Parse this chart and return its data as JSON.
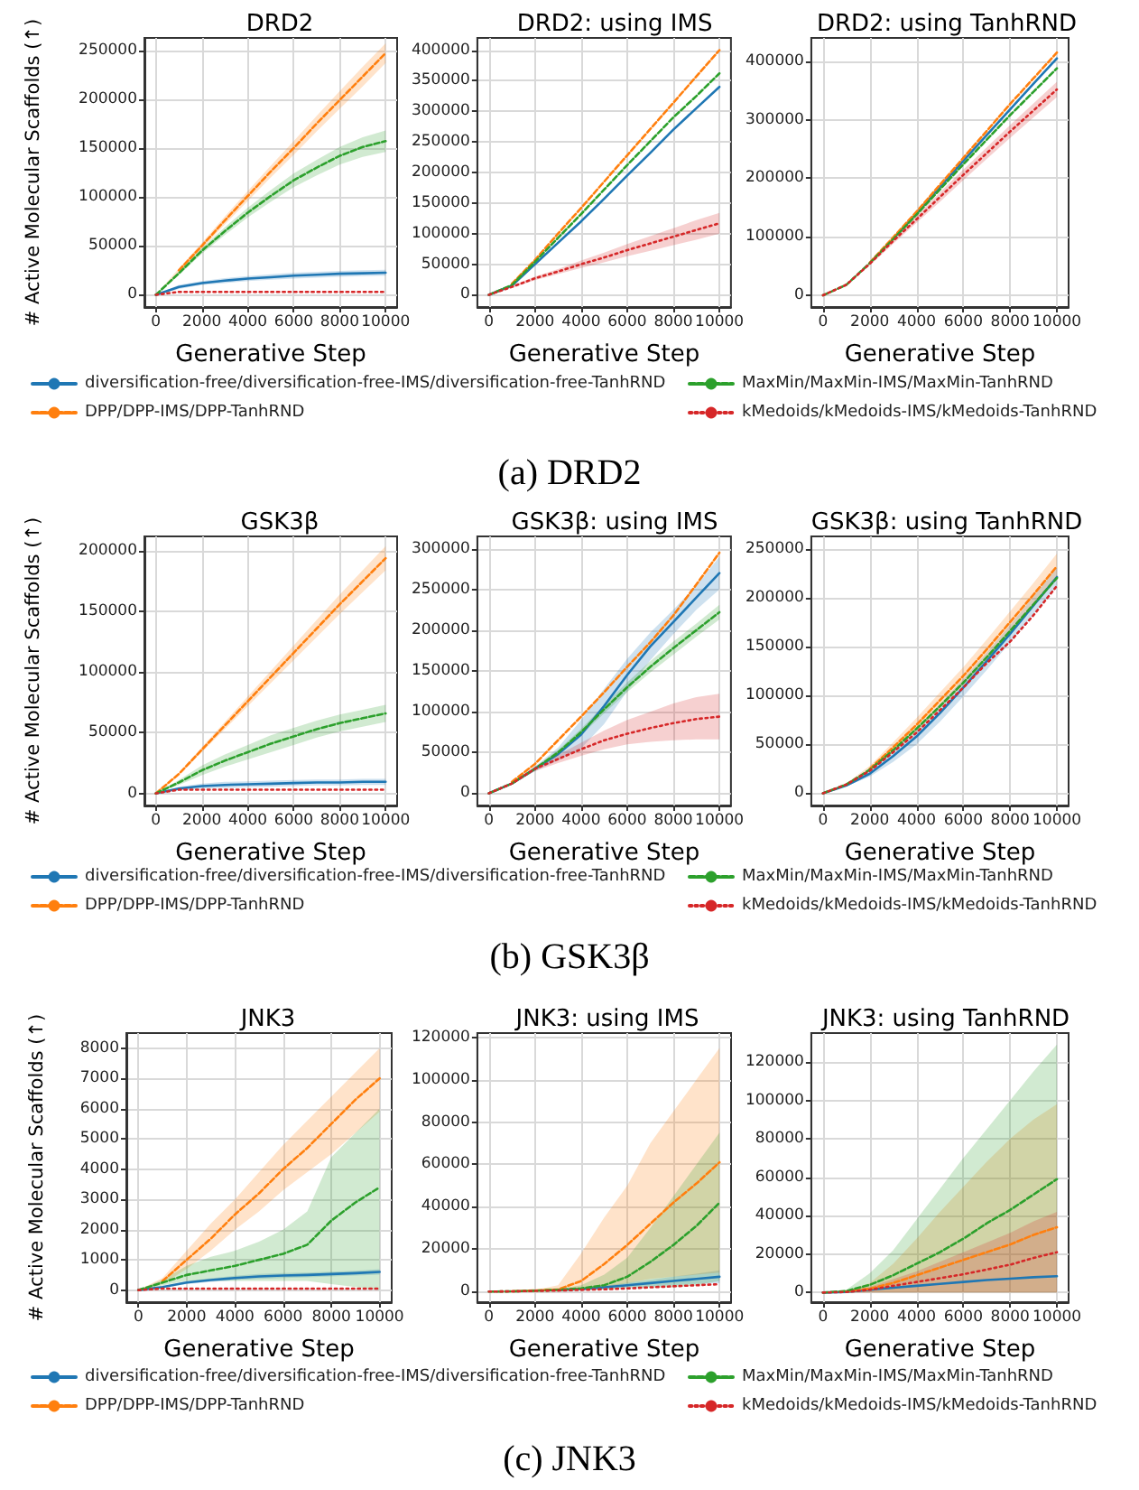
{
  "chart_data": [
    {
      "type": "line",
      "title": "DRD2",
      "xlabel": "Generative Step",
      "ylabel": "# Active Molecular Scaffolds (↑)",
      "annotations": [
        "(a) DRD2"
      ],
      "legend": "bottom",
      "grid": true,
      "marker": "none",
      "x": [
        0,
        1000,
        2000,
        3000,
        4000,
        5000,
        6000,
        7000,
        8000,
        9000,
        10000
      ],
      "xlim": [
        -500,
        10500
      ],
      "xticks": [
        0,
        2000,
        4000,
        6000,
        8000,
        10000
      ],
      "ylim": [
        -12500,
        262500
      ],
      "yticks": [
        0,
        50000,
        100000,
        150000,
        200000,
        250000
      ],
      "series": [
        {
          "name": "diversification-free/diversification-free-IMS/diversification-free-TanhRND",
          "color": "#1f77b4",
          "line_style": "solid",
          "values": [
            0,
            8000,
            12000,
            14500,
            16500,
            18000,
            19500,
            20500,
            21500,
            22000,
            22500
          ],
          "lower": [
            0,
            6000,
            10000,
            12000,
            14000,
            15500,
            16500,
            17500,
            18500,
            19000,
            19500
          ],
          "upper": [
            0,
            10000,
            14000,
            17000,
            19000,
            21000,
            22500,
            23500,
            24500,
            25000,
            25500
          ]
        },
        {
          "name": "DPP/DPP-IMS/DPP-TanhRND",
          "color": "#ff7f0e",
          "line_style": "dashed",
          "values": [
            null,
            25000,
            50000,
            76000,
            101000,
            126000,
            150000,
            175000,
            199000,
            223000,
            247000
          ],
          "lower": [
            0,
            23000,
            47000,
            72000,
            96000,
            120000,
            143000,
            167000,
            190000,
            213000,
            237000
          ],
          "upper": [
            0,
            27000,
            53000,
            80000,
            106000,
            132000,
            157000,
            183000,
            208000,
            233000,
            257000
          ]
        },
        {
          "name": "MaxMin/MaxMin-IMS/MaxMin-TanhRND",
          "color": "#2ca02c",
          "line_style": "dashed",
          "values": [
            0,
            22000,
            45000,
            65000,
            84000,
            101000,
            117000,
            130000,
            142000,
            151000,
            157000
          ],
          "lower": [
            0,
            20000,
            42000,
            61000,
            79000,
            95000,
            110000,
            122000,
            133000,
            141000,
            146000
          ],
          "upper": [
            0,
            24000,
            48000,
            69000,
            89000,
            107000,
            124000,
            138000,
            151000,
            161000,
            168000
          ]
        },
        {
          "name": "kMedoids/kMedoids-IMS/kMedoids-TanhRND",
          "color": "#d62728",
          "line_style": "dotted",
          "values": [
            0,
            3000,
            3000,
            3000,
            3000,
            3000,
            3000,
            3000,
            3000,
            3000,
            3000
          ]
        }
      ]
    },
    {
      "type": "line",
      "title": "DRD2: using IMS",
      "xlabel": "Generative Step",
      "grid": true,
      "marker": "none",
      "x": [
        0,
        1000,
        2000,
        3000,
        4000,
        5000,
        6000,
        7000,
        8000,
        9000,
        10000
      ],
      "xlim": [
        -500,
        10500
      ],
      "xticks": [
        0,
        2000,
        4000,
        6000,
        8000,
        10000
      ],
      "ylim": [
        -20000,
        420000
      ],
      "yticks": [
        0,
        50000,
        100000,
        150000,
        200000,
        250000,
        300000,
        350000,
        400000
      ],
      "series": [
        {
          "color": "#1f77b4",
          "line_style": "solid",
          "values": [
            0,
            15000,
            50000,
            85000,
            120000,
            157000,
            195000,
            232000,
            270000,
            305000,
            340000
          ]
        },
        {
          "color": "#ff7f0e",
          "line_style": "dashed",
          "values": [
            null,
            18000,
            57000,
            100000,
            142000,
            185000,
            228000,
            271000,
            314000,
            357000,
            400000
          ]
        },
        {
          "color": "#2ca02c",
          "line_style": "dashed",
          "values": [
            0,
            16000,
            54000,
            93000,
            132000,
            172000,
            212000,
            251000,
            290000,
            325000,
            362000
          ]
        },
        {
          "color": "#d62728",
          "line_style": "dotted",
          "values": [
            0,
            13000,
            27000,
            38000,
            50000,
            61000,
            73000,
            84000,
            95000,
            106000,
            117000
          ],
          "lower": [
            0,
            11000,
            24000,
            34000,
            44000,
            53000,
            63000,
            72000,
            81000,
            90000,
            100000
          ],
          "upper": [
            0,
            15000,
            30000,
            42000,
            56000,
            69000,
            83000,
            96000,
            109000,
            122000,
            134000
          ]
        }
      ]
    },
    {
      "type": "line",
      "title": "DRD2: using TanhRND",
      "xlabel": "Generative Step",
      "grid": true,
      "marker": "none",
      "x": [
        0,
        1000,
        2000,
        3000,
        4000,
        5000,
        6000,
        7000,
        8000,
        9000,
        10000
      ],
      "xlim": [
        -500,
        10500
      ],
      "xticks": [
        0,
        2000,
        4000,
        6000,
        8000,
        10000
      ],
      "ylim": [
        -20000,
        440000
      ],
      "yticks": [
        0,
        100000,
        200000,
        300000,
        400000
      ],
      "series": [
        {
          "color": "#1f77b4",
          "line_style": "solid",
          "values": [
            null,
            null,
            null,
            97000,
            140000,
            185000,
            230000,
            274000,
            318000,
            362000,
            405000
          ]
        },
        {
          "color": "#ff7f0e",
          "line_style": "dashed",
          "values": [
            null,
            null,
            56000,
            99000,
            143000,
            189000,
            235000,
            281000,
            327000,
            371000,
            415000
          ]
        },
        {
          "color": "#2ca02c",
          "line_style": "dashed",
          "values": [
            0,
            18000,
            55000,
            96000,
            138000,
            181000,
            224000,
            266000,
            308000,
            348000,
            388000
          ]
        },
        {
          "color": "#d62728",
          "line_style": "dotted",
          "values": [
            0,
            18000,
            54000,
            93000,
            130000,
            168000,
            206000,
            243000,
            280000,
            316000,
            352000
          ],
          "lower": [
            0,
            17000,
            51000,
            88000,
            124000,
            160000,
            197000,
            233000,
            269000,
            304000,
            339000
          ],
          "upper": [
            0,
            19000,
            57000,
            98000,
            136000,
            176000,
            215000,
            253000,
            291000,
            328000,
            365000
          ]
        }
      ]
    },
    {
      "type": "line",
      "title": "GSK3β",
      "xlabel": "Generative Step",
      "ylabel": "# Active Molecular Scaffolds (↑)",
      "annotations": [
        "(b) GSK3β"
      ],
      "legend": "bottom",
      "grid": true,
      "marker": "none",
      "x": [
        0,
        1000,
        2000,
        3000,
        4000,
        5000,
        6000,
        7000,
        8000,
        9000,
        10000
      ],
      "xlim": [
        -500,
        10500
      ],
      "xticks": [
        0,
        2000,
        4000,
        6000,
        8000,
        10000
      ],
      "ylim": [
        -10000,
        212000
      ],
      "yticks": [
        0,
        50000,
        100000,
        150000,
        200000
      ],
      "series": [
        {
          "name": "diversification-free/diversification-free-IMS/diversification-free-TanhRND",
          "color": "#1f77b4",
          "line_style": "solid",
          "values": [
            0,
            4000,
            6000,
            7000,
            7500,
            8000,
            8500,
            9000,
            9000,
            9500,
            9500
          ],
          "lower": [
            0,
            2500,
            4000,
            4500,
            5000,
            5500,
            6000,
            6500,
            6500,
            7000,
            7000
          ],
          "upper": [
            0,
            5500,
            8000,
            9500,
            10000,
            10500,
            11000,
            11500,
            11500,
            12000,
            12000
          ]
        },
        {
          "name": "DPP/DPP-IMS/DPP-TanhRND",
          "color": "#ff7f0e",
          "line_style": "dashed",
          "values": [
            0,
            16000,
            36000,
            56000,
            76000,
            96000,
            116000,
            136000,
            156000,
            175000,
            194000
          ],
          "lower": [
            0,
            15000,
            34000,
            53000,
            72000,
            91000,
            110000,
            129000,
            148000,
            166000,
            184000
          ],
          "upper": [
            0,
            17000,
            38000,
            59000,
            80000,
            101000,
            122000,
            143000,
            164000,
            184000,
            204000
          ]
        },
        {
          "name": "MaxMin/MaxMin-IMS/MaxMin-TanhRND",
          "color": "#2ca02c",
          "line_style": "dashed",
          "values": [
            0,
            9000,
            19000,
            27000,
            34000,
            41000,
            47000,
            53000,
            58000,
            62000,
            66000
          ],
          "lower": [
            0,
            7000,
            15000,
            22000,
            28000,
            34000,
            40000,
            46000,
            51000,
            55000,
            59000
          ],
          "upper": [
            0,
            11000,
            23000,
            32000,
            40000,
            48000,
            54000,
            60000,
            65000,
            69000,
            73000
          ]
        },
        {
          "name": "kMedoids/kMedoids-IMS/kMedoids-TanhRND",
          "color": "#d62728",
          "line_style": "dotted",
          "values": [
            0,
            3000,
            3000,
            3000,
            3000,
            3000,
            3000,
            3000,
            3000,
            3000,
            3000
          ]
        }
      ]
    },
    {
      "type": "line",
      "title": "GSK3β: using IMS",
      "xlabel": "Generative Step",
      "grid": true,
      "marker": "none",
      "x": [
        0,
        1000,
        2000,
        3000,
        4000,
        5000,
        6000,
        7000,
        8000,
        9000,
        10000
      ],
      "xlim": [
        -500,
        10500
      ],
      "xticks": [
        0,
        2000,
        4000,
        6000,
        8000,
        10000
      ],
      "ylim": [
        -15000,
        315000
      ],
      "yticks": [
        0,
        50000,
        100000,
        150000,
        200000,
        250000,
        300000
      ],
      "series": [
        {
          "color": "#1f77b4",
          "line_style": "solid",
          "values": [
            0,
            12000,
            30000,
            48000,
            72000,
            107000,
            145000,
            180000,
            210000,
            240000,
            270000
          ],
          "lower": [
            0,
            11000,
            27000,
            40000,
            55000,
            85000,
            125000,
            163000,
            195000,
            225000,
            250000
          ],
          "upper": [
            0,
            13000,
            33000,
            56000,
            90000,
            128000,
            165000,
            197000,
            225000,
            255000,
            290000
          ]
        },
        {
          "color": "#ff7f0e",
          "line_style": "dashed",
          "values": [
            null,
            14000,
            36000,
            65000,
            94000,
            124000,
            155000,
            185000,
            218000,
            256000,
            295000
          ]
        },
        {
          "color": "#2ca02c",
          "line_style": "dashed",
          "values": [
            0,
            12000,
            30000,
            50000,
            75000,
            103000,
            130000,
            155000,
            178000,
            200000,
            222000
          ],
          "lower": [
            0,
            11000,
            28000,
            47000,
            71000,
            98000,
            124000,
            148000,
            170000,
            192000,
            213000
          ],
          "upper": [
            0,
            13000,
            32000,
            53000,
            79000,
            108000,
            136000,
            162000,
            186000,
            208000,
            231000
          ]
        },
        {
          "color": "#d62728",
          "line_style": "dotted",
          "values": [
            0,
            12000,
            30000,
            42000,
            54000,
            65000,
            73000,
            80000,
            86000,
            91000,
            94000
          ],
          "lower": [
            0,
            11000,
            27000,
            37000,
            46000,
            54000,
            60000,
            63000,
            65000,
            66000,
            66000
          ],
          "upper": [
            0,
            13000,
            33000,
            47000,
            62000,
            77000,
            90000,
            100000,
            110000,
            118000,
            122000
          ]
        }
      ]
    },
    {
      "type": "line",
      "title": "GSK3β: using TanhRND",
      "xlabel": "Generative Step",
      "grid": true,
      "marker": "none",
      "x": [
        0,
        1000,
        2000,
        3000,
        4000,
        5000,
        6000,
        7000,
        8000,
        9000,
        10000
      ],
      "xlim": [
        -500,
        10500
      ],
      "xticks": [
        0,
        2000,
        4000,
        6000,
        8000,
        10000
      ],
      "ylim": [
        -12500,
        262500
      ],
      "yticks": [
        0,
        50000,
        100000,
        150000,
        200000,
        250000
      ],
      "series": [
        {
          "color": "#1f77b4",
          "line_style": "solid",
          "values": [
            0,
            8000,
            20000,
            38000,
            58000,
            82000,
            108000,
            135000,
            163000,
            192000,
            221000
          ],
          "lower": [
            0,
            7000,
            17000,
            32000,
            50000,
            73000,
            99000,
            126000,
            154000,
            183000,
            211000
          ],
          "upper": [
            0,
            9000,
            23000,
            44000,
            66000,
            91000,
            117000,
            144000,
            172000,
            201000,
            231000
          ]
        },
        {
          "color": "#ff7f0e",
          "line_style": "dashed",
          "values": [
            null,
            null,
            25000,
            47000,
            70000,
            95000,
            120000,
            147000,
            175000,
            203000,
            232000
          ],
          "lower": [
            0,
            8000,
            22000,
            42000,
            63000,
            87000,
            111000,
            137000,
            164000,
            191000,
            219000
          ],
          "upper": [
            0,
            10000,
            28000,
            52000,
            77000,
            103000,
            129000,
            157000,
            186000,
            215000,
            245000
          ]
        },
        {
          "color": "#2ca02c",
          "line_style": "dashed",
          "values": [
            0,
            9000,
            24000,
            44000,
            66000,
            89000,
            113000,
            139000,
            166000,
            193000,
            220000
          ]
        },
        {
          "color": "#d62728",
          "line_style": "dotted",
          "values": [
            0,
            9000,
            23000,
            42000,
            62000,
            85000,
            108000,
            133000,
            155000,
            182000,
            212000
          ]
        }
      ]
    },
    {
      "type": "line",
      "title": "JNK3",
      "xlabel": "Generative Step",
      "ylabel": "# Active Molecular Scaffolds (↑)",
      "annotations": [
        "(c) JNK3"
      ],
      "legend": "bottom",
      "grid": true,
      "marker": "none",
      "x": [
        0,
        1000,
        2000,
        3000,
        4000,
        5000,
        6000,
        7000,
        8000,
        9000,
        10000
      ],
      "xlim": [
        -500,
        10500
      ],
      "xticks": [
        0,
        2000,
        4000,
        6000,
        8000,
        10000
      ],
      "ylim": [
        -400,
        8500
      ],
      "yticks": [
        0,
        1000,
        2000,
        3000,
        4000,
        5000,
        6000,
        7000,
        8000
      ],
      "series": [
        {
          "name": "diversification-free/diversification-free-IMS/diversification-free-TanhRND",
          "color": "#1f77b4",
          "line_style": "solid",
          "values": [
            0,
            100,
            250,
            330,
            400,
            450,
            480,
            500,
            530,
            560,
            600
          ],
          "lower": [
            0,
            80,
            200,
            270,
            330,
            370,
            400,
            420,
            450,
            480,
            510
          ],
          "upper": [
            0,
            120,
            300,
            390,
            470,
            530,
            560,
            580,
            610,
            640,
            690
          ]
        },
        {
          "name": "DPP/DPP-IMS/DPP-TanhRND",
          "color": "#ff7f0e",
          "line_style": "dashed",
          "values": [
            null,
            300,
            1000,
            1700,
            2500,
            3200,
            4000,
            4700,
            5500,
            6300,
            7000
          ],
          "lower": [
            0,
            200,
            700,
            1300,
            2000,
            2600,
            3300,
            3900,
            4500,
            5200,
            5900
          ],
          "upper": [
            0,
            400,
            1300,
            2200,
            3000,
            3900,
            4800,
            5600,
            6400,
            7200,
            8000
          ]
        },
        {
          "name": "MaxMin/MaxMin-IMS/MaxMin-TanhRND",
          "color": "#2ca02c",
          "line_style": "dashed",
          "values": [
            0,
            250,
            500,
            650,
            800,
            1000,
            1200,
            1500,
            2300,
            2900,
            3400
          ],
          "lower": [
            0,
            150,
            300,
            300,
            300,
            300,
            300,
            300,
            200,
            100,
            0
          ],
          "upper": [
            0,
            350,
            800,
            1100,
            1300,
            1600,
            2000,
            2600,
            4400,
            5200,
            6000
          ]
        },
        {
          "name": "kMedoids/kMedoids-IMS/kMedoids-TanhRND",
          "color": "#d62728",
          "line_style": "dotted",
          "values": [
            0,
            50,
            50,
            50,
            50,
            50,
            50,
            50,
            50,
            50,
            50
          ]
        }
      ]
    },
    {
      "type": "line",
      "title": "JNK3: using IMS",
      "xlabel": "Generative Step",
      "grid": true,
      "marker": "none",
      "x": [
        0,
        1000,
        2000,
        3000,
        4000,
        5000,
        6000,
        7000,
        8000,
        9000,
        10000
      ],
      "xlim": [
        -500,
        10500
      ],
      "xticks": [
        0,
        2000,
        4000,
        6000,
        8000,
        10000
      ],
      "ylim": [
        -5000,
        122000
      ],
      "yticks": [
        0,
        20000,
        40000,
        60000,
        80000,
        100000,
        120000
      ],
      "series": [
        {
          "color": "#1f77b4",
          "line_style": "solid",
          "values": [
            null,
            null,
            null,
            800,
            1200,
            2000,
            3000,
            4000,
            5000,
            6000,
            7000
          ],
          "lower": [
            0,
            100,
            300,
            500,
            800,
            1200,
            1800,
            2400,
            3000,
            3600,
            4000
          ],
          "upper": [
            0,
            300,
            700,
            1100,
            1600,
            2800,
            4200,
            5600,
            7000,
            8400,
            10000
          ]
        },
        {
          "color": "#ff7f0e",
          "line_style": "dashed",
          "values": [
            null,
            100,
            500,
            1000,
            5000,
            13000,
            22000,
            32000,
            42000,
            51000,
            61000
          ],
          "lower": [
            0,
            0,
            200,
            500,
            800,
            2000,
            4000,
            6000,
            7000,
            8000,
            9000
          ],
          "upper": [
            0,
            200,
            800,
            3000,
            18000,
            35000,
            50000,
            70000,
            85000,
            100000,
            115000
          ]
        },
        {
          "color": "#2ca02c",
          "line_style": "dashed",
          "values": [
            0,
            100,
            400,
            800,
            1500,
            3000,
            7000,
            14000,
            22000,
            31000,
            42000
          ],
          "lower": [
            0,
            0,
            200,
            400,
            600,
            1000,
            2000,
            2000,
            2000,
            3000,
            5000
          ],
          "upper": [
            0,
            200,
            600,
            1200,
            3000,
            8000,
            16000,
            30000,
            45000,
            60000,
            75000
          ]
        },
        {
          "color": "#d62728",
          "line_style": "dotted",
          "values": [
            0,
            100,
            300,
            500,
            800,
            1100,
            1500,
            2000,
            2500,
            3000,
            3500
          ]
        }
      ]
    },
    {
      "type": "line",
      "title": "JNK3: using TanhRND",
      "xlabel": "Generative Step",
      "grid": true,
      "marker": "none",
      "x": [
        0,
        1000,
        2000,
        3000,
        4000,
        5000,
        6000,
        7000,
        8000,
        9000,
        10000
      ],
      "xlim": [
        -500,
        10500
      ],
      "xticks": [
        0,
        2000,
        4000,
        6000,
        8000,
        10000
      ],
      "ylim": [
        -5000,
        135000
      ],
      "yticks": [
        0,
        20000,
        40000,
        60000,
        80000,
        100000,
        120000
      ],
      "series": [
        {
          "color": "#1f77b4",
          "line_style": "solid",
          "values": [
            0,
            300,
            1500,
            2500,
            3500,
            4500,
            5500,
            6500,
            7200,
            8000,
            8500
          ]
        },
        {
          "color": "#ff7f0e",
          "line_style": "dashed",
          "values": [
            null,
            500,
            2000,
            5000,
            9000,
            13000,
            17000,
            21000,
            25000,
            30000,
            34000
          ],
          "lower": [
            0,
            0,
            0,
            0,
            0,
            0,
            0,
            0,
            0,
            0,
            0
          ],
          "upper": [
            0,
            800,
            5000,
            15000,
            28000,
            42000,
            55000,
            68000,
            80000,
            90000,
            98000
          ]
        },
        {
          "color": "#2ca02c",
          "line_style": "dashed",
          "values": [
            0,
            800,
            4000,
            9000,
            15000,
            21000,
            28000,
            36000,
            43000,
            51000,
            59000
          ],
          "lower": [
            0,
            0,
            0,
            0,
            0,
            0,
            0,
            0,
            0,
            0,
            0
          ],
          "upper": [
            0,
            1500,
            10000,
            22000,
            38000,
            54000,
            70000,
            85000,
            100000,
            115000,
            129000
          ]
        },
        {
          "color": "#d62728",
          "line_style": "dotted",
          "values": [
            0,
            300,
            1500,
            3500,
            5500,
            7500,
            9500,
            12000,
            14500,
            18000,
            21000
          ],
          "lower": [
            0,
            0,
            0,
            0,
            0,
            0,
            0,
            0,
            0,
            0,
            0
          ],
          "upper": [
            0,
            600,
            3000,
            7000,
            11000,
            16000,
            21000,
            26000,
            31000,
            37000,
            42000
          ]
        }
      ]
    }
  ]
}
